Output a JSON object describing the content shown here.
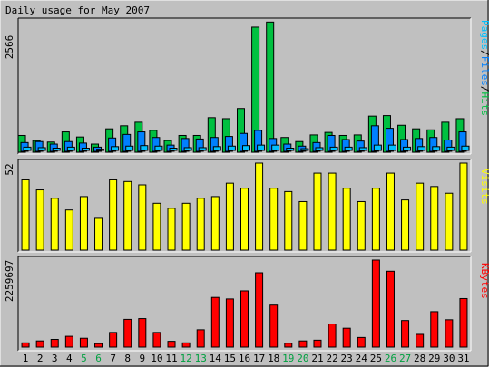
{
  "title": "Daily usage for May 2007",
  "colors": {
    "background": "#c0c0c0",
    "hits": "#00c040",
    "files": "#0080ff",
    "pages": "#00c0ff",
    "visits": "#ffff00",
    "kbytes": "#ff0000",
    "weekend_label": "#00a040",
    "weekday_label": "#000000",
    "axis_text": "#000000"
  },
  "chart_data": [
    {
      "type": "bar",
      "panel": "hits-files-pages",
      "ylabel": "2566",
      "ymax": 2566,
      "legend": [
        "Pages",
        "Files",
        "Hits"
      ],
      "categories": [
        "1",
        "2",
        "3",
        "4",
        "5",
        "6",
        "7",
        "8",
        "9",
        "10",
        "11",
        "12",
        "13",
        "14",
        "15",
        "16",
        "17",
        "18",
        "19",
        "20",
        "21",
        "22",
        "23",
        "24",
        "25",
        "26",
        "27",
        "28",
        "29",
        "30",
        "31"
      ],
      "weekend": [
        5,
        6,
        12,
        13,
        19,
        20,
        26,
        27
      ],
      "series": [
        {
          "name": "Hits",
          "values": [
            330,
            230,
            200,
            400,
            300,
            160,
            460,
            520,
            590,
            430,
            230,
            330,
            330,
            680,
            660,
            860,
            2460,
            2560,
            290,
            210,
            340,
            390,
            330,
            340,
            710,
            720,
            530,
            460,
            440,
            590,
            660
          ]
        },
        {
          "name": "Files",
          "values": [
            190,
            210,
            160,
            210,
            180,
            100,
            280,
            350,
            400,
            290,
            140,
            270,
            260,
            290,
            310,
            370,
            430,
            270,
            160,
            120,
            190,
            330,
            250,
            220,
            520,
            470,
            250,
            270,
            290,
            240,
            400
          ]
        },
        {
          "name": "Pages",
          "values": [
            100,
            90,
            80,
            100,
            80,
            60,
            110,
            120,
            130,
            120,
            80,
            90,
            90,
            110,
            120,
            130,
            140,
            140,
            80,
            70,
            90,
            100,
            100,
            90,
            140,
            140,
            100,
            110,
            110,
            100,
            120
          ]
        }
      ]
    },
    {
      "type": "bar",
      "panel": "visits",
      "ylabel": "52",
      "ymax": 52,
      "legend": [
        "Visits"
      ],
      "categories": [
        "1",
        "2",
        "3",
        "4",
        "5",
        "6",
        "7",
        "8",
        "9",
        "10",
        "11",
        "12",
        "13",
        "14",
        "15",
        "16",
        "17",
        "18",
        "19",
        "20",
        "21",
        "22",
        "23",
        "24",
        "25",
        "26",
        "27",
        "28",
        "29",
        "30",
        "31"
      ],
      "series": [
        {
          "name": "Visits",
          "values": [
            42,
            36,
            31,
            24,
            32,
            19,
            42,
            41,
            39,
            28,
            25,
            28,
            31,
            32,
            40,
            37,
            52,
            37,
            35,
            29,
            46,
            46,
            37,
            29,
            37,
            46,
            30,
            40,
            38,
            34,
            52
          ]
        }
      ]
    },
    {
      "type": "bar",
      "panel": "kbytes",
      "ylabel": "2259697",
      "ymax": 2259697,
      "legend": [
        "KBytes"
      ],
      "categories": [
        "1",
        "2",
        "3",
        "4",
        "5",
        "6",
        "7",
        "8",
        "9",
        "10",
        "11",
        "12",
        "13",
        "14",
        "15",
        "16",
        "17",
        "18",
        "19",
        "20",
        "21",
        "22",
        "23",
        "24",
        "25",
        "26",
        "27",
        "28",
        "29",
        "30",
        "31"
      ],
      "series": [
        {
          "name": "KBytes",
          "values": [
            110000,
            160000,
            200000,
            280000,
            230000,
            90000,
            380000,
            720000,
            740000,
            380000,
            150000,
            110000,
            450000,
            1290000,
            1250000,
            1460000,
            1930000,
            1090000,
            100000,
            160000,
            180000,
            600000,
            490000,
            250000,
            2260000,
            1970000,
            690000,
            330000,
            920000,
            710000,
            1260000
          ]
        }
      ]
    }
  ]
}
